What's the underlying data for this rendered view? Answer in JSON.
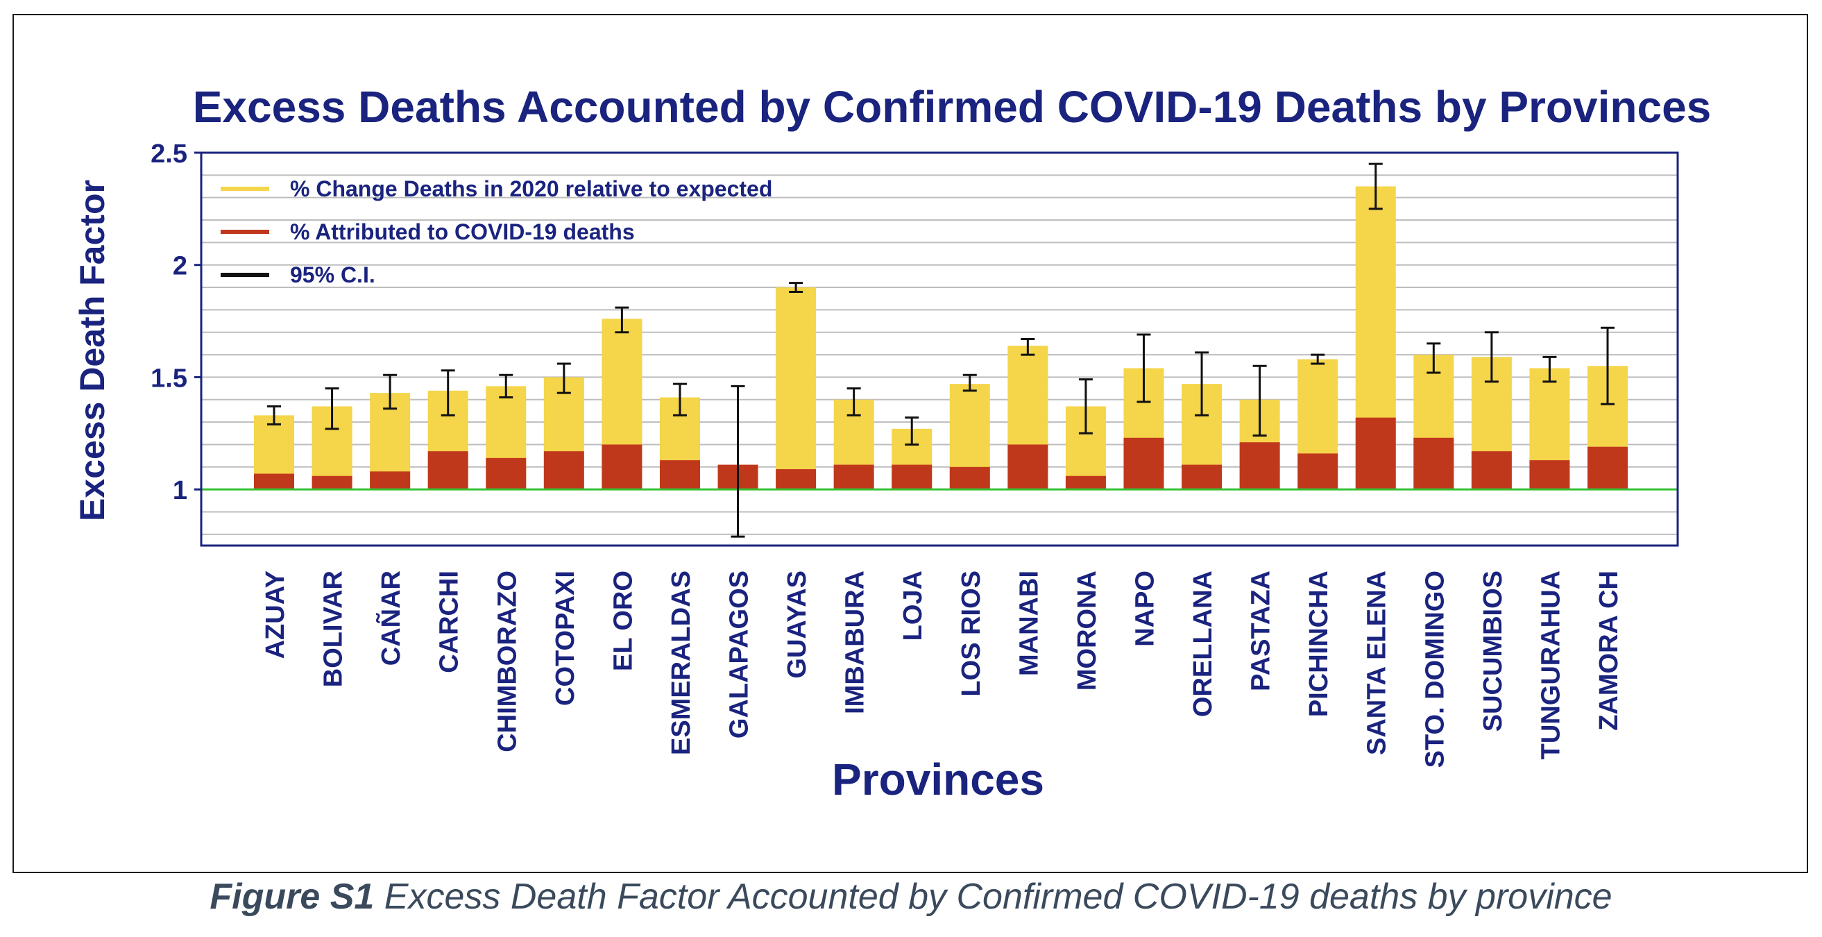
{
  "chart_data": {
    "type": "bar",
    "title": "Excess Deaths Accounted by Confirmed COVID-19 Deaths by Provinces",
    "xlabel": "Provinces",
    "ylabel": "Excess Death Factor",
    "ylim": [
      0.75,
      2.5
    ],
    "yticks": [
      "1",
      "1.5",
      "2",
      "2.5"
    ],
    "ytick_values": [
      1,
      1.5,
      2,
      2.5
    ],
    "baseline": 1,
    "grid": true,
    "legend_position": "top-left",
    "categories": [
      "AZUAY",
      "BOLIVAR",
      "CAÑAR",
      "CARCHI",
      "CHIMBORAZO",
      "COTOPAXI",
      "EL ORO",
      "ESMERALDAS",
      "GALAPAGOS",
      "GUAYAS",
      "IMBABURA",
      "LOJA",
      "LOS RIOS",
      "MANABI",
      "MORONA",
      "NAPO",
      "ORELLANA",
      "PASTAZA",
      "PICHINCHA",
      "SANTA ELENA",
      "STO. DOMINGO",
      "SUCUMBIOS",
      "TUNGURAHUA",
      "ZAMORA CH"
    ],
    "series": [
      {
        "name": "% Change Deaths in 2020 relative to expected",
        "color": "#f5d54a",
        "values": [
          1.33,
          1.37,
          1.43,
          1.44,
          1.46,
          1.5,
          1.76,
          1.41,
          1.0,
          1.9,
          1.4,
          1.27,
          1.47,
          1.64,
          1.37,
          1.54,
          1.47,
          1.4,
          1.58,
          2.35,
          1.6,
          1.59,
          1.54,
          1.55
        ]
      },
      {
        "name": "% Attributed to COVID-19 deaths",
        "color": "#c0381c",
        "values": [
          1.07,
          1.06,
          1.08,
          1.17,
          1.14,
          1.17,
          1.2,
          1.13,
          1.11,
          1.09,
          1.11,
          1.11,
          1.1,
          1.2,
          1.06,
          1.23,
          1.11,
          1.21,
          1.16,
          1.32,
          1.23,
          1.17,
          1.13,
          1.19
        ]
      },
      {
        "name": "95% C.I.",
        "color": "#111111",
        "lower": [
          1.29,
          1.27,
          1.36,
          1.33,
          1.41,
          1.43,
          1.7,
          1.33,
          0.79,
          1.88,
          1.33,
          1.2,
          1.44,
          1.6,
          1.25,
          1.39,
          1.33,
          1.24,
          1.56,
          2.25,
          1.52,
          1.48,
          1.48,
          1.38
        ],
        "upper": [
          1.37,
          1.45,
          1.51,
          1.53,
          1.51,
          1.56,
          1.81,
          1.47,
          1.46,
          1.92,
          1.45,
          1.32,
          1.51,
          1.67,
          1.49,
          1.69,
          1.61,
          1.55,
          1.6,
          2.45,
          1.65,
          1.7,
          1.59,
          1.72
        ]
      }
    ],
    "colors": {
      "title": "#1a237e",
      "axis": "#1a237e",
      "grid": "#bdbdbd",
      "baseline": "#34c134"
    }
  },
  "caption": {
    "label": "Figure S1",
    "text": " Excess Death Factor Accounted by Confirmed COVID-19 deaths by province"
  }
}
